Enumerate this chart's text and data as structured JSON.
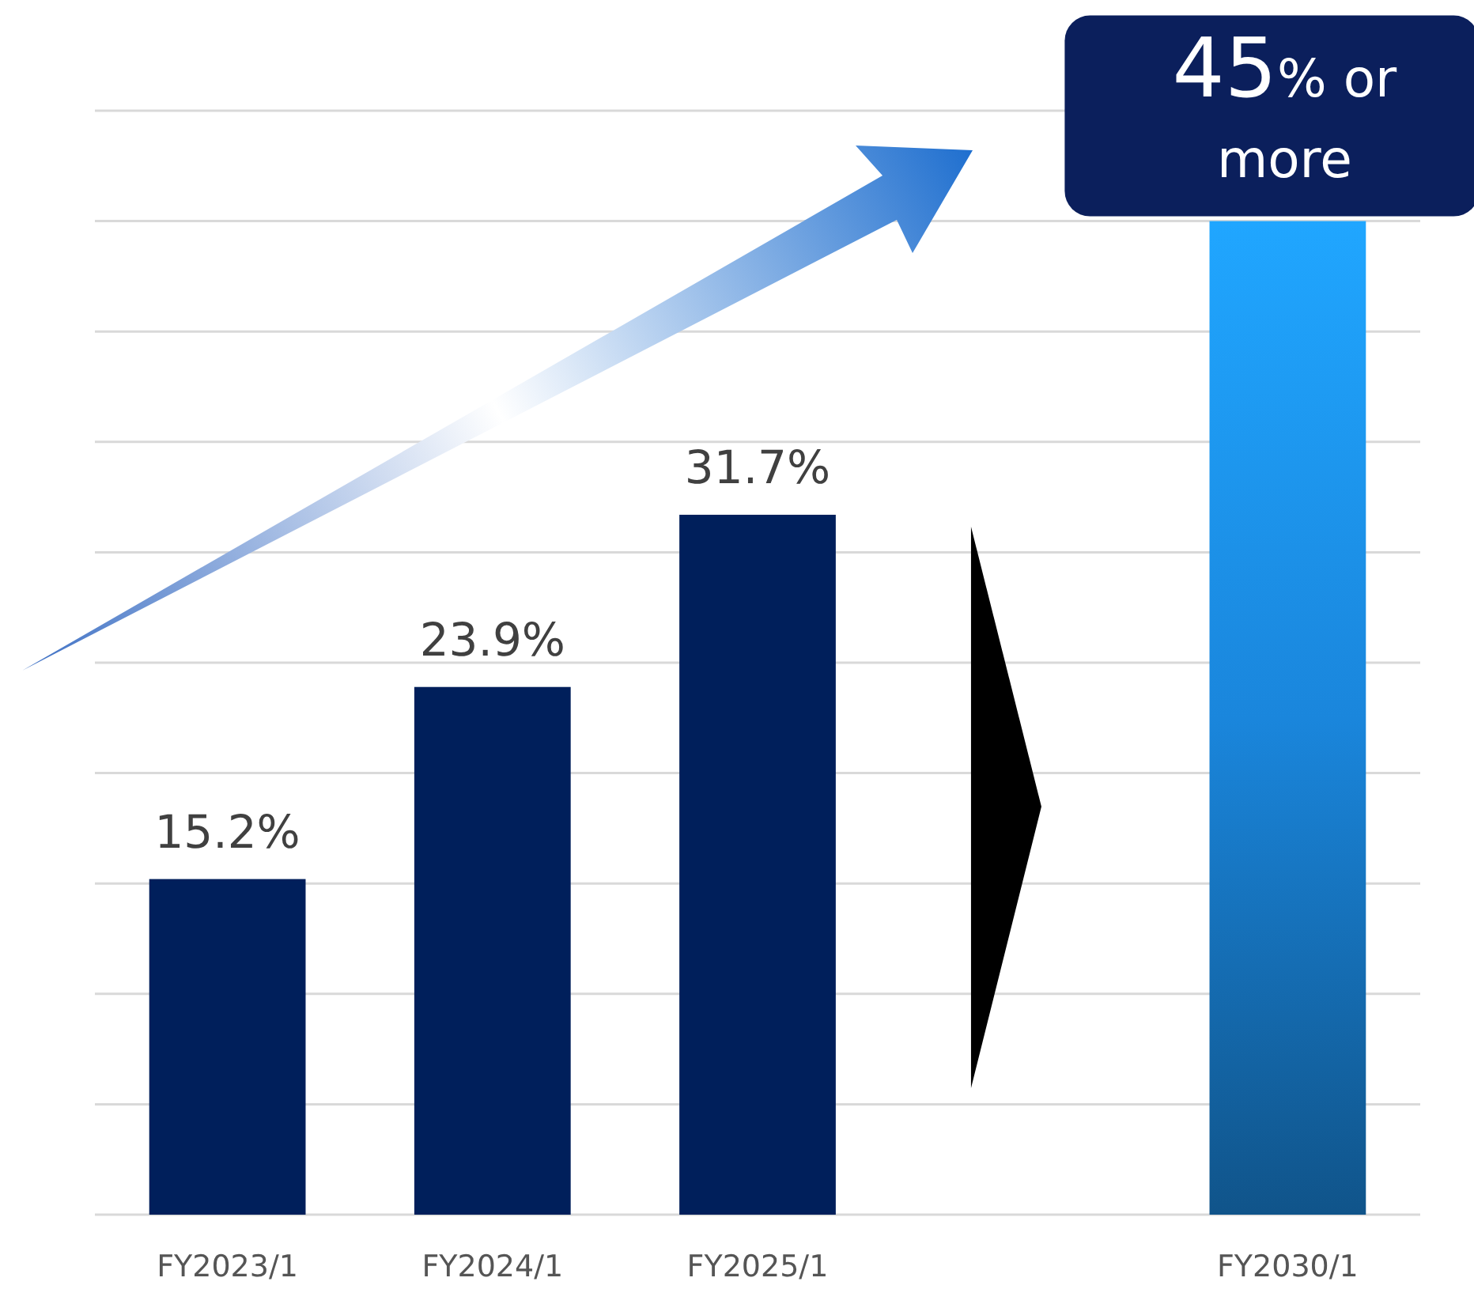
{
  "chart_data": {
    "type": "bar",
    "categories": [
      "FY2023/1",
      "FY2024/1",
      "FY2025/1",
      null,
      "FY2030/1"
    ],
    "values": [
      15.2,
      23.9,
      31.7,
      null,
      45
    ],
    "colors": [
      "#001f5b",
      "#001f5b",
      "#001f5b",
      "#000000",
      "#1a86dc"
    ],
    "value_labels": [
      "15.2%",
      "23.9%",
      "31.7%",
      null,
      "45% or more"
    ],
    "ylim": [
      0,
      50
    ],
    "yticks": [
      {
        "value": 0,
        "label": null
      },
      {
        "value": 5,
        "label": null
      },
      {
        "value": 10,
        "label": null
      },
      {
        "value": 15,
        "label": null
      },
      {
        "value": 20,
        "label": null
      },
      {
        "value": 25,
        "label": null
      },
      {
        "value": 30,
        "label": null
      },
      {
        "value": 35,
        "label": null
      },
      {
        "value": 40,
        "label": null
      },
      {
        "value": 45,
        "label": null
      },
      {
        "value": 50,
        "label": null
      }
    ],
    "grid": "y",
    "tick_labels": "x"
  }
}
